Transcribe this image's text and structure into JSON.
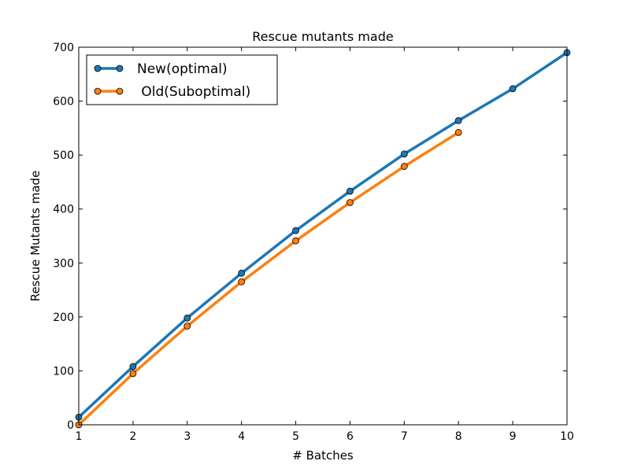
{
  "chart_data": {
    "type": "line",
    "title": "Rescue mutants made",
    "xlabel": "# Batches",
    "ylabel": "Rescue Mutants made",
    "xlim": [
      1,
      10
    ],
    "ylim": [
      0,
      700
    ],
    "xticks": [
      "1",
      "2",
      "3",
      "4",
      "5",
      "6",
      "7",
      "8",
      "9",
      "10"
    ],
    "yticks": [
      "0",
      "100",
      "200",
      "300",
      "400",
      "500",
      "600",
      "700"
    ],
    "grid": false,
    "legend_position": "top-left",
    "series": [
      {
        "name": "New(optimal)",
        "color": "#1f77b4",
        "x": [
          1,
          2,
          3,
          4,
          5,
          6,
          7,
          8,
          9,
          10
        ],
        "y": [
          14,
          108,
          198,
          281,
          360,
          433,
          502,
          564,
          623,
          690
        ]
      },
      {
        "name": " Old(Suboptimal)",
        "color": "#ff7f0e",
        "x": [
          1,
          2,
          3,
          4,
          5,
          6,
          7,
          8
        ],
        "y": [
          0,
          95,
          183,
          265,
          341,
          412,
          479,
          542
        ]
      }
    ]
  }
}
